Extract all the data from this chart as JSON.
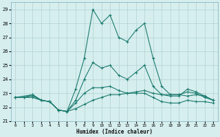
{
  "xlabel": "Humidex (Indice chaleur)",
  "bg_color": "#d6eeee",
  "grid_color": "#b0d0d0",
  "line_color": "#1a7a6e",
  "xlim": [
    -0.5,
    23.5
  ],
  "ylim": [
    21,
    29.5
  ],
  "yticks": [
    21,
    22,
    23,
    24,
    25,
    26,
    27,
    28,
    29
  ],
  "xticks": [
    0,
    1,
    2,
    3,
    4,
    5,
    6,
    7,
    8,
    9,
    10,
    11,
    12,
    13,
    14,
    15,
    16,
    17,
    18,
    19,
    20,
    21,
    22,
    23
  ],
  "lines": [
    {
      "x": [
        0,
        1,
        2,
        3,
        4,
        5,
        6,
        7,
        8,
        9,
        10,
        11,
        12,
        13,
        14,
        15,
        16,
        17,
        18,
        19,
        20,
        21,
        22,
        23
      ],
      "y": [
        22.7,
        22.7,
        22.9,
        22.5,
        22.4,
        21.8,
        21.7,
        23.3,
        25.5,
        29.0,
        28.0,
        28.6,
        27.0,
        26.7,
        27.5,
        28.0,
        25.5,
        23.5,
        22.9,
        22.9,
        22.8,
        22.9,
        22.8,
        22.5
      ]
    },
    {
      "x": [
        0,
        2,
        3,
        4,
        5,
        6,
        7,
        8,
        9,
        10,
        11,
        12,
        13,
        14,
        15,
        16,
        17,
        18,
        19,
        20,
        21,
        22,
        23
      ],
      "y": [
        22.7,
        22.9,
        22.5,
        22.4,
        21.8,
        21.7,
        22.5,
        24.0,
        25.2,
        24.8,
        25.0,
        24.3,
        24.0,
        24.5,
        25.0,
        23.5,
        22.9,
        22.8,
        22.8,
        23.3,
        23.1,
        22.8,
        22.5
      ]
    },
    {
      "x": [
        0,
        1,
        2,
        3,
        4,
        5,
        6,
        7,
        8,
        9,
        10,
        11,
        12,
        13,
        14,
        15,
        16,
        17,
        18,
        19,
        20,
        21,
        22,
        23
      ],
      "y": [
        22.7,
        22.7,
        22.8,
        22.5,
        22.4,
        21.8,
        21.7,
        22.3,
        23.0,
        23.4,
        23.4,
        23.5,
        23.2,
        23.0,
        23.1,
        23.2,
        23.0,
        22.9,
        22.9,
        22.9,
        23.1,
        23.0,
        22.7,
        22.5
      ]
    },
    {
      "x": [
        0,
        1,
        2,
        3,
        4,
        5,
        6,
        7,
        8,
        9,
        10,
        11,
        12,
        13,
        14,
        15,
        16,
        17,
        18,
        19,
        20,
        21,
        22,
        23
      ],
      "y": [
        22.7,
        22.7,
        22.7,
        22.5,
        22.4,
        21.8,
        21.7,
        21.9,
        22.2,
        22.5,
        22.7,
        22.9,
        22.9,
        23.0,
        23.0,
        23.0,
        22.7,
        22.4,
        22.3,
        22.3,
        22.5,
        22.4,
        22.4,
        22.3
      ]
    }
  ]
}
